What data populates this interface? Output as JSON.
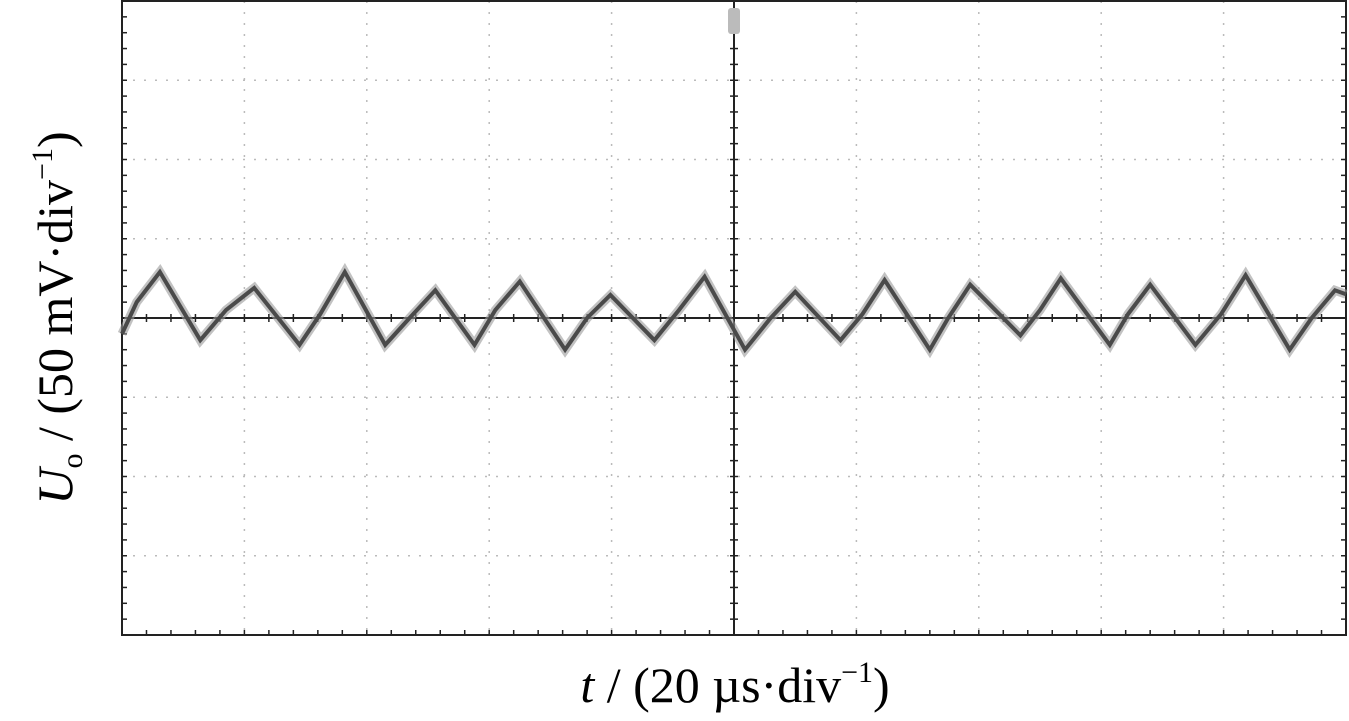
{
  "chart_data": {
    "type": "line",
    "x_label": {
      "symbol": "t",
      "text": " / (20 µs·div",
      "superscript": "−1",
      "close": ")"
    },
    "y_label": {
      "symbol": "U",
      "subscript": "o",
      "text": " / (50 mV·div",
      "superscript": "−1",
      "close": ")"
    },
    "xlim": [
      0,
      10
    ],
    "ylim": [
      -4,
      4
    ],
    "grid": true,
    "series": [
      {
        "color": "#4a4a4a",
        "x": [
          0.0,
          0.12,
          0.31,
          0.64,
          0.85,
          1.08,
          1.45,
          1.62,
          1.82,
          2.15,
          2.35,
          2.56,
          2.88,
          3.05,
          3.25,
          3.62,
          3.8,
          3.99,
          4.35,
          4.55,
          4.76,
          5.09,
          5.3,
          5.5,
          5.87,
          6.05,
          6.23,
          6.6,
          6.75,
          6.93,
          7.34,
          7.5,
          7.67,
          8.07,
          8.22,
          8.4,
          8.77,
          8.98,
          9.18,
          9.54,
          9.72,
          9.91,
          10.0
        ],
        "values": [
          -0.2,
          0.2,
          0.58,
          -0.28,
          0.1,
          0.38,
          -0.34,
          0.05,
          0.58,
          -0.34,
          0.0,
          0.35,
          -0.34,
          0.1,
          0.46,
          -0.4,
          0.0,
          0.29,
          -0.28,
          0.1,
          0.52,
          -0.4,
          0.0,
          0.33,
          -0.28,
          0.05,
          0.48,
          -0.4,
          0.0,
          0.42,
          -0.22,
          0.1,
          0.5,
          -0.34,
          0.05,
          0.42,
          -0.34,
          0.05,
          0.54,
          -0.4,
          0.0,
          0.35,
          0.3
        ]
      }
    ]
  }
}
